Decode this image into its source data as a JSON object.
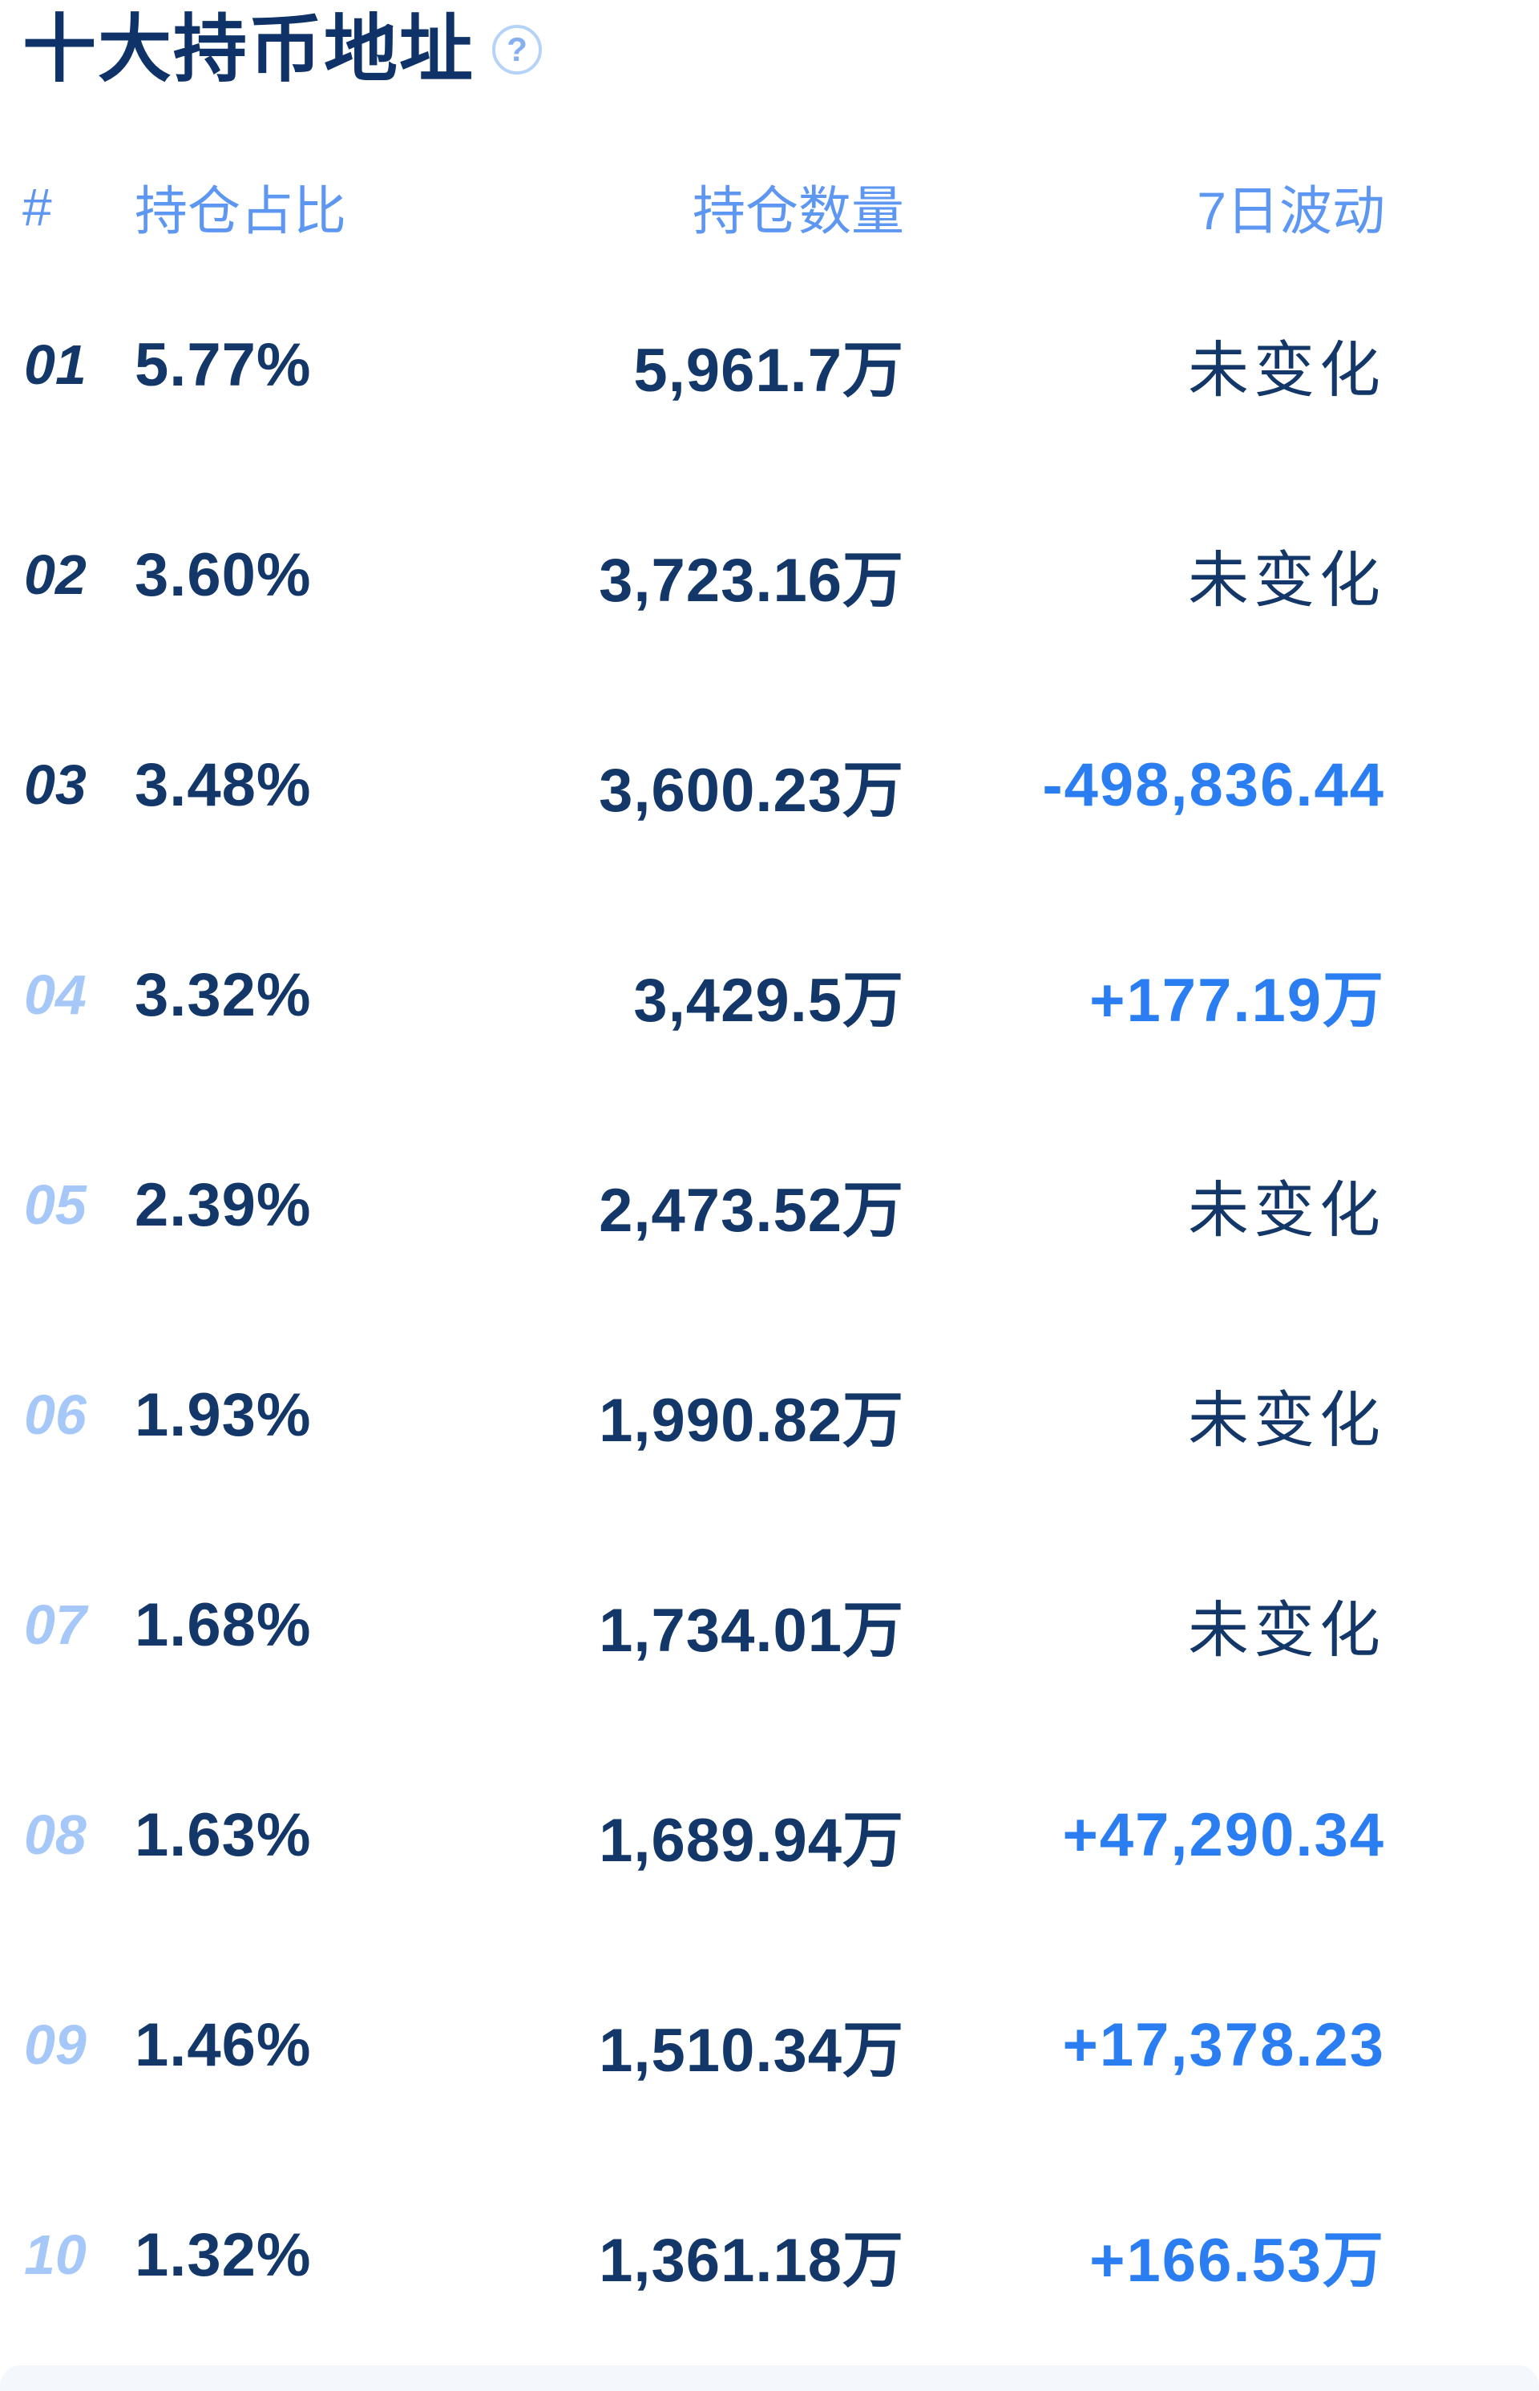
{
  "panel": {
    "title": "十大持币地址",
    "help_icon": {
      "glyph": "?"
    }
  },
  "table": {
    "headers": {
      "rank": "#",
      "ratio": "持仓占比",
      "amount": "持仓数量",
      "change": "7日波动"
    },
    "rows": [
      {
        "rank": "01",
        "ratio": "5.77%",
        "amount": "5,961.7万",
        "change": "未变化",
        "change_kind": "unchanged",
        "rank_style": "dark"
      },
      {
        "rank": "02",
        "ratio": "3.60%",
        "amount": "3,723.16万",
        "change": "未变化",
        "change_kind": "unchanged",
        "rank_style": "dark"
      },
      {
        "rank": "03",
        "ratio": "3.48%",
        "amount": "3,600.23万",
        "change": "-498,836.44",
        "change_kind": "decrease",
        "rank_style": "dark"
      },
      {
        "rank": "04",
        "ratio": "3.32%",
        "amount": "3,429.5万",
        "change": "+177.19万",
        "change_kind": "increase",
        "rank_style": "light"
      },
      {
        "rank": "05",
        "ratio": "2.39%",
        "amount": "2,473.52万",
        "change": "未变化",
        "change_kind": "unchanged",
        "rank_style": "light"
      },
      {
        "rank": "06",
        "ratio": "1.93%",
        "amount": "1,990.82万",
        "change": "未变化",
        "change_kind": "unchanged",
        "rank_style": "light"
      },
      {
        "rank": "07",
        "ratio": "1.68%",
        "amount": "1,734.01万",
        "change": "未变化",
        "change_kind": "unchanged",
        "rank_style": "light"
      },
      {
        "rank": "08",
        "ratio": "1.63%",
        "amount": "1,689.94万",
        "change": "+47,290.34",
        "change_kind": "increase",
        "rank_style": "light"
      },
      {
        "rank": "09",
        "ratio": "1.46%",
        "amount": "1,510.34万",
        "change": "+17,378.23",
        "change_kind": "increase",
        "rank_style": "light"
      },
      {
        "rank": "10",
        "ratio": "1.32%",
        "amount": "1,361.18万",
        "change": "+166.53万",
        "change_kind": "increase",
        "rank_style": "light"
      }
    ]
  },
  "colors": {
    "title_navy": "#0F3368",
    "value_navy": "#123768",
    "rank_light_blue": "#A6C8F9",
    "header_blue": "#5D97F2",
    "change_blue": "#2B7EF2",
    "help_icon_blue": "#B5D2F8",
    "bottom_strip": "#F4F7FB"
  }
}
